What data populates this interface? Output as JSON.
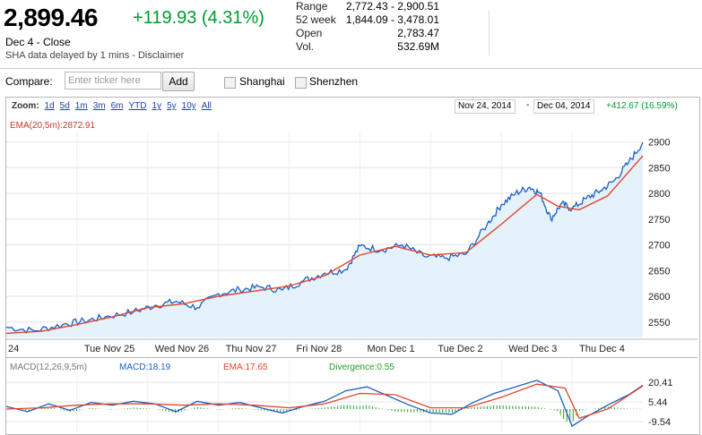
{
  "quote": {
    "price": "2,899.46",
    "change": "+119.93 (4.31%)",
    "date_line": "Dec 4 - Close",
    "disclaimer": "SHA data delayed by 1 mins - Disclaimer",
    "stats": [
      {
        "label": "Range",
        "value": "2,772.43 - 2,900.51"
      },
      {
        "label": "52 week",
        "value": "1,844.09 - 3,478.01"
      },
      {
        "label": "Open",
        "value": "2,783.47"
      },
      {
        "label": "Vol.",
        "value": "532.69M"
      }
    ],
    "change_color": "#009a2f"
  },
  "compare": {
    "label": "Compare:",
    "placeholder": "Enter ticker here",
    "add_label": "Add",
    "options": [
      {
        "label": "Shanghai",
        "checked": false
      },
      {
        "label": "Shenzhen",
        "checked": false
      }
    ]
  },
  "zoom": {
    "label": "Zoom:",
    "options": [
      "1d",
      "5d",
      "1m",
      "3m",
      "6m",
      "YTD",
      "1y",
      "5y",
      "10y",
      "All"
    ],
    "range_start": "Nov 24, 2014",
    "range_sep": "-",
    "range_end": "Dec 04, 2014",
    "range_change": "+412.67 (16.59%)"
  },
  "chart_data": [
    {
      "type": "line",
      "ema_label": "EMA(20,5m):2872.91",
      "x_labels": [
        "24",
        "Tue Nov 25",
        "Wed Nov 26",
        "Thu Nov 27",
        "Fri Nov 28",
        "Mon Dec 1",
        "Tue Dec 2",
        "Wed Dec 3",
        "Thu Dec 4"
      ],
      "y_ticks": [
        2550,
        2600,
        2650,
        2700,
        2750,
        2800,
        2850,
        2900
      ],
      "ylim": [
        2520,
        2920
      ],
      "x_range": [
        0,
        9
      ],
      "series": [
        {
          "color": "#1a5fc4",
          "points": [
            [
              0.0,
              2540
            ],
            [
              0.4,
              2533
            ],
            [
              0.8,
              2545
            ],
            [
              1.1,
              2552
            ],
            [
              1.4,
              2560
            ],
            [
              1.8,
              2570
            ],
            [
              2.1,
              2582
            ],
            [
              2.4,
              2590
            ],
            [
              2.7,
              2578
            ],
            [
              3.0,
              2605
            ],
            [
              3.3,
              2613
            ],
            [
              3.6,
              2618
            ],
            [
              3.9,
              2612
            ],
            [
              4.2,
              2630
            ],
            [
              4.5,
              2645
            ],
            [
              4.8,
              2652
            ],
            [
              5.0,
              2698
            ],
            [
              5.3,
              2690
            ],
            [
              5.6,
              2700
            ],
            [
              5.9,
              2678
            ],
            [
              6.2,
              2674
            ],
            [
              6.5,
              2682
            ],
            [
              6.8,
              2740
            ],
            [
              7.0,
              2778
            ],
            [
              7.2,
              2800
            ],
            [
              7.4,
              2812
            ],
            [
              7.55,
              2800
            ],
            [
              7.7,
              2750
            ],
            [
              7.85,
              2780
            ],
            [
              8.0,
              2770
            ],
            [
              8.2,
              2790
            ],
            [
              8.4,
              2805
            ],
            [
              8.6,
              2825
            ],
            [
              8.8,
              2860
            ],
            [
              9.0,
              2899
            ]
          ]
        },
        {
          "color": "#e0462a",
          "points": [
            [
              0.0,
              2528
            ],
            [
              0.5,
              2532
            ],
            [
              1.0,
              2545
            ],
            [
              1.5,
              2560
            ],
            [
              2.0,
              2578
            ],
            [
              2.5,
              2585
            ],
            [
              3.0,
              2600
            ],
            [
              3.5,
              2610
            ],
            [
              4.0,
              2620
            ],
            [
              4.5,
              2640
            ],
            [
              5.0,
              2680
            ],
            [
              5.5,
              2697
            ],
            [
              6.0,
              2680
            ],
            [
              6.5,
              2685
            ],
            [
              7.0,
              2740
            ],
            [
              7.5,
              2798
            ],
            [
              7.8,
              2775
            ],
            [
              8.1,
              2768
            ],
            [
              8.5,
              2795
            ],
            [
              9.0,
              2872.91
            ]
          ]
        }
      ]
    },
    {
      "type": "line",
      "macd_label": "MACD(12,26,9,5m)",
      "macd_value": "MACD:18.19",
      "ema_value": "EMA:17.65",
      "div_value": "Divergence:0.55",
      "y_ticks_text": [
        "20.41",
        "5.44",
        "-9.54"
      ],
      "y_ticks": [
        20.41,
        5.44,
        -9.54
      ],
      "ylim": [
        -15,
        26
      ],
      "x_range": [
        0,
        9
      ],
      "macd_color": "#1a5fc4",
      "ema_color": "#e0462a",
      "div_color": "#2a9d2a",
      "macd": [
        [
          0.0,
          2
        ],
        [
          0.3,
          -2
        ],
        [
          0.6,
          4
        ],
        [
          0.9,
          -1
        ],
        [
          1.2,
          5
        ],
        [
          1.5,
          3
        ],
        [
          1.8,
          6
        ],
        [
          2.1,
          4
        ],
        [
          2.4,
          -2
        ],
        [
          2.7,
          6
        ],
        [
          3.0,
          3
        ],
        [
          3.3,
          5
        ],
        [
          3.6,
          1
        ],
        [
          3.9,
          -3
        ],
        [
          4.2,
          2
        ],
        [
          4.5,
          6
        ],
        [
          4.8,
          14
        ],
        [
          5.1,
          17
        ],
        [
          5.4,
          10
        ],
        [
          5.7,
          3
        ],
        [
          6.0,
          -3
        ],
        [
          6.3,
          -4
        ],
        [
          6.6,
          5
        ],
        [
          6.9,
          12
        ],
        [
          7.2,
          17
        ],
        [
          7.5,
          22
        ],
        [
          7.8,
          14
        ],
        [
          8.0,
          -13
        ],
        [
          8.2,
          -6
        ],
        [
          8.5,
          3
        ],
        [
          8.8,
          11
        ],
        [
          9.0,
          18.19
        ]
      ],
      "ema": [
        [
          0.0,
          0
        ],
        [
          0.5,
          1
        ],
        [
          1.0,
          3
        ],
        [
          1.5,
          4
        ],
        [
          2.0,
          4
        ],
        [
          2.5,
          3
        ],
        [
          3.0,
          4
        ],
        [
          3.5,
          3
        ],
        [
          4.0,
          1
        ],
        [
          4.5,
          4
        ],
        [
          5.0,
          12
        ],
        [
          5.5,
          11
        ],
        [
          6.0,
          1
        ],
        [
          6.5,
          1
        ],
        [
          7.0,
          9
        ],
        [
          7.5,
          19
        ],
        [
          7.9,
          16
        ],
        [
          8.1,
          -7
        ],
        [
          8.5,
          0
        ],
        [
          9.0,
          17.65
        ]
      ]
    }
  ]
}
